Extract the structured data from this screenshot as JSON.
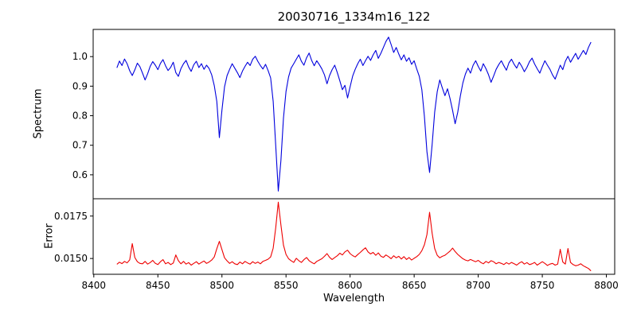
{
  "chart_data": {
    "type": "line",
    "title": "20030716_1334m16_122",
    "xlabel": "Wavelength",
    "xlim": [
      8399.5,
      8806.5
    ],
    "x_ticks": [
      8400,
      8450,
      8500,
      8550,
      8600,
      8650,
      8700,
      8750,
      8800
    ],
    "x_tick_labels": [
      "8400",
      "8450",
      "8500",
      "8550",
      "8600",
      "8650",
      "8700",
      "8750",
      "8800"
    ],
    "grid": false,
    "legend": "none",
    "x": [
      8418,
      8420,
      8422,
      8424,
      8426,
      8428,
      8430,
      8432,
      8434,
      8436,
      8438,
      8440,
      8442,
      8444,
      8446,
      8448,
      8450,
      8452,
      8454,
      8456,
      8458,
      8460,
      8462,
      8464,
      8466,
      8468,
      8470,
      8472,
      8474,
      8476,
      8478,
      8480,
      8482,
      8484,
      8486,
      8488,
      8490,
      8492,
      8494,
      8496,
      8498,
      8500,
      8502,
      8504,
      8506,
      8508,
      8510,
      8512,
      8514,
      8516,
      8518,
      8520,
      8522,
      8524,
      8526,
      8528,
      8530,
      8532,
      8534,
      8536,
      8538,
      8540,
      8542,
      8544,
      8546,
      8548,
      8550,
      8552,
      8554,
      8556,
      8558,
      8560,
      8562,
      8564,
      8566,
      8568,
      8570,
      8572,
      8574,
      8576,
      8578,
      8580,
      8582,
      8584,
      8586,
      8588,
      8590,
      8592,
      8594,
      8596,
      8598,
      8600,
      8602,
      8604,
      8606,
      8608,
      8610,
      8612,
      8614,
      8616,
      8618,
      8620,
      8622,
      8624,
      8626,
      8628,
      8630,
      8632,
      8634,
      8636,
      8638,
      8640,
      8642,
      8644,
      8646,
      8648,
      8650,
      8652,
      8654,
      8656,
      8658,
      8660,
      8662,
      8664,
      8666,
      8668,
      8670,
      8672,
      8674,
      8676,
      8678,
      8680,
      8682,
      8684,
      8686,
      8688,
      8690,
      8692,
      8694,
      8696,
      8698,
      8700,
      8702,
      8704,
      8706,
      8708,
      8710,
      8712,
      8714,
      8716,
      8718,
      8720,
      8722,
      8724,
      8726,
      8728,
      8730,
      8732,
      8734,
      8736,
      8738,
      8740,
      8742,
      8744,
      8746,
      8748,
      8750,
      8752,
      8754,
      8756,
      8758,
      8760,
      8762,
      8764,
      8766,
      8768,
      8770,
      8772,
      8774,
      8776,
      8778,
      8780,
      8782,
      8784,
      8786,
      8788
    ],
    "panels": [
      {
        "name": "spectrum",
        "ylabel": "Spectrum",
        "color": "#0000dd",
        "ylim": [
          0.519,
          1.092
        ],
        "yticks": [
          0.6,
          0.7,
          0.8,
          0.9,
          1.0
        ],
        "ytick_labels": [
          "0.6",
          "0.7",
          "0.8",
          "0.9",
          "1.0"
        ],
        "values": [
          0.962,
          0.985,
          0.97,
          0.992,
          0.976,
          0.952,
          0.936,
          0.955,
          0.978,
          0.966,
          0.944,
          0.921,
          0.942,
          0.967,
          0.983,
          0.971,
          0.956,
          0.977,
          0.99,
          0.969,
          0.953,
          0.964,
          0.981,
          0.946,
          0.933,
          0.959,
          0.976,
          0.987,
          0.965,
          0.95,
          0.972,
          0.984,
          0.963,
          0.976,
          0.957,
          0.971,
          0.96,
          0.938,
          0.902,
          0.848,
          0.726,
          0.818,
          0.898,
          0.936,
          0.957,
          0.976,
          0.961,
          0.946,
          0.929,
          0.951,
          0.967,
          0.981,
          0.97,
          0.991,
          1.001,
          0.984,
          0.97,
          0.958,
          0.974,
          0.953,
          0.928,
          0.848,
          0.698,
          0.545,
          0.648,
          0.792,
          0.882,
          0.931,
          0.961,
          0.976,
          0.991,
          1.006,
          0.984,
          0.971,
          0.996,
          1.012,
          0.987,
          0.969,
          0.986,
          0.973,
          0.958,
          0.938,
          0.908,
          0.936,
          0.956,
          0.971,
          0.946,
          0.918,
          0.888,
          0.903,
          0.86,
          0.898,
          0.934,
          0.957,
          0.976,
          0.991,
          0.97,
          0.986,
          1.001,
          0.987,
          1.006,
          1.021,
          0.994,
          1.011,
          1.031,
          1.051,
          1.066,
          1.041,
          1.014,
          1.031,
          1.009,
          0.989,
          1.006,
          0.984,
          0.996,
          0.974,
          0.986,
          0.958,
          0.933,
          0.888,
          0.798,
          0.678,
          0.608,
          0.702,
          0.812,
          0.881,
          0.921,
          0.894,
          0.868,
          0.891,
          0.858,
          0.818,
          0.773,
          0.812,
          0.866,
          0.911,
          0.941,
          0.961,
          0.944,
          0.971,
          0.986,
          0.967,
          0.951,
          0.976,
          0.959,
          0.939,
          0.913,
          0.934,
          0.957,
          0.973,
          0.986,
          0.969,
          0.954,
          0.979,
          0.991,
          0.974,
          0.961,
          0.981,
          0.967,
          0.949,
          0.964,
          0.983,
          0.995,
          0.975,
          0.959,
          0.944,
          0.966,
          0.986,
          0.971,
          0.957,
          0.938,
          0.924,
          0.947,
          0.971,
          0.956,
          0.984,
          1.001,
          0.981,
          0.996,
          1.011,
          0.991,
          1.006,
          1.021,
          1.007,
          1.031,
          1.049
        ]
      },
      {
        "name": "error",
        "ylabel": "Error",
        "color": "#ee0000",
        "ylim": [
          0.01407,
          0.01852
        ],
        "yticks": [
          0.015,
          0.0175
        ],
        "ytick_labels": [
          "0.0150",
          "0.0175"
        ],
        "values": [
          0.01466,
          0.01478,
          0.0147,
          0.01483,
          0.01474,
          0.01492,
          0.01588,
          0.01506,
          0.01481,
          0.01471,
          0.01469,
          0.01483,
          0.01467,
          0.01476,
          0.01489,
          0.01471,
          0.01464,
          0.01481,
          0.01493,
          0.01469,
          0.01477,
          0.01464,
          0.01473,
          0.01521,
          0.01487,
          0.01469,
          0.01483,
          0.01467,
          0.01476,
          0.01461,
          0.01471,
          0.01481,
          0.01467,
          0.01477,
          0.01485,
          0.01471,
          0.01479,
          0.01491,
          0.01509,
          0.01558,
          0.01601,
          0.01553,
          0.01504,
          0.01486,
          0.01471,
          0.01481,
          0.01469,
          0.01464,
          0.01479,
          0.01469,
          0.01483,
          0.01474,
          0.01467,
          0.01481,
          0.01471,
          0.01479,
          0.01469,
          0.01483,
          0.01489,
          0.01496,
          0.01509,
          0.01561,
          0.01682,
          0.01832,
          0.01698,
          0.01579,
          0.01524,
          0.01499,
          0.01487,
          0.01477,
          0.01501,
          0.01487,
          0.01477,
          0.01493,
          0.01506,
          0.01487,
          0.01477,
          0.01469,
          0.01483,
          0.01491,
          0.01499,
          0.01513,
          0.01529,
          0.01507,
          0.01494,
          0.01506,
          0.01516,
          0.01531,
          0.01521,
          0.01539,
          0.01549,
          0.01529,
          0.01517,
          0.01509,
          0.01523,
          0.01536,
          0.01551,
          0.01563,
          0.01539,
          0.01527,
          0.01536,
          0.01519,
          0.01533,
          0.01514,
          0.01507,
          0.01521,
          0.01511,
          0.01499,
          0.01516,
          0.01504,
          0.01513,
          0.01497,
          0.01511,
          0.01494,
          0.01506,
          0.01491,
          0.01501,
          0.01511,
          0.01524,
          0.01546,
          0.01581,
          0.01641,
          0.01772,
          0.01649,
          0.01559,
          0.01519,
          0.01504,
          0.01513,
          0.01519,
          0.01531,
          0.01544,
          0.01561,
          0.01541,
          0.01524,
          0.01511,
          0.01499,
          0.01491,
          0.01486,
          0.01494,
          0.01487,
          0.01481,
          0.01489,
          0.01477,
          0.01469,
          0.01483,
          0.01474,
          0.01487,
          0.01481,
          0.01469,
          0.01477,
          0.01471,
          0.01464,
          0.01476,
          0.01467,
          0.01477,
          0.01469,
          0.01461,
          0.01473,
          0.01481,
          0.01467,
          0.01476,
          0.01464,
          0.01469,
          0.01477,
          0.01461,
          0.01471,
          0.01481,
          0.01471,
          0.01459,
          0.01467,
          0.01471,
          0.01461,
          0.01467,
          0.01554,
          0.01479,
          0.01467,
          0.01559,
          0.01477,
          0.01464,
          0.01457,
          0.01461,
          0.01469,
          0.01457,
          0.01449,
          0.01441,
          0.01427
        ]
      }
    ]
  }
}
